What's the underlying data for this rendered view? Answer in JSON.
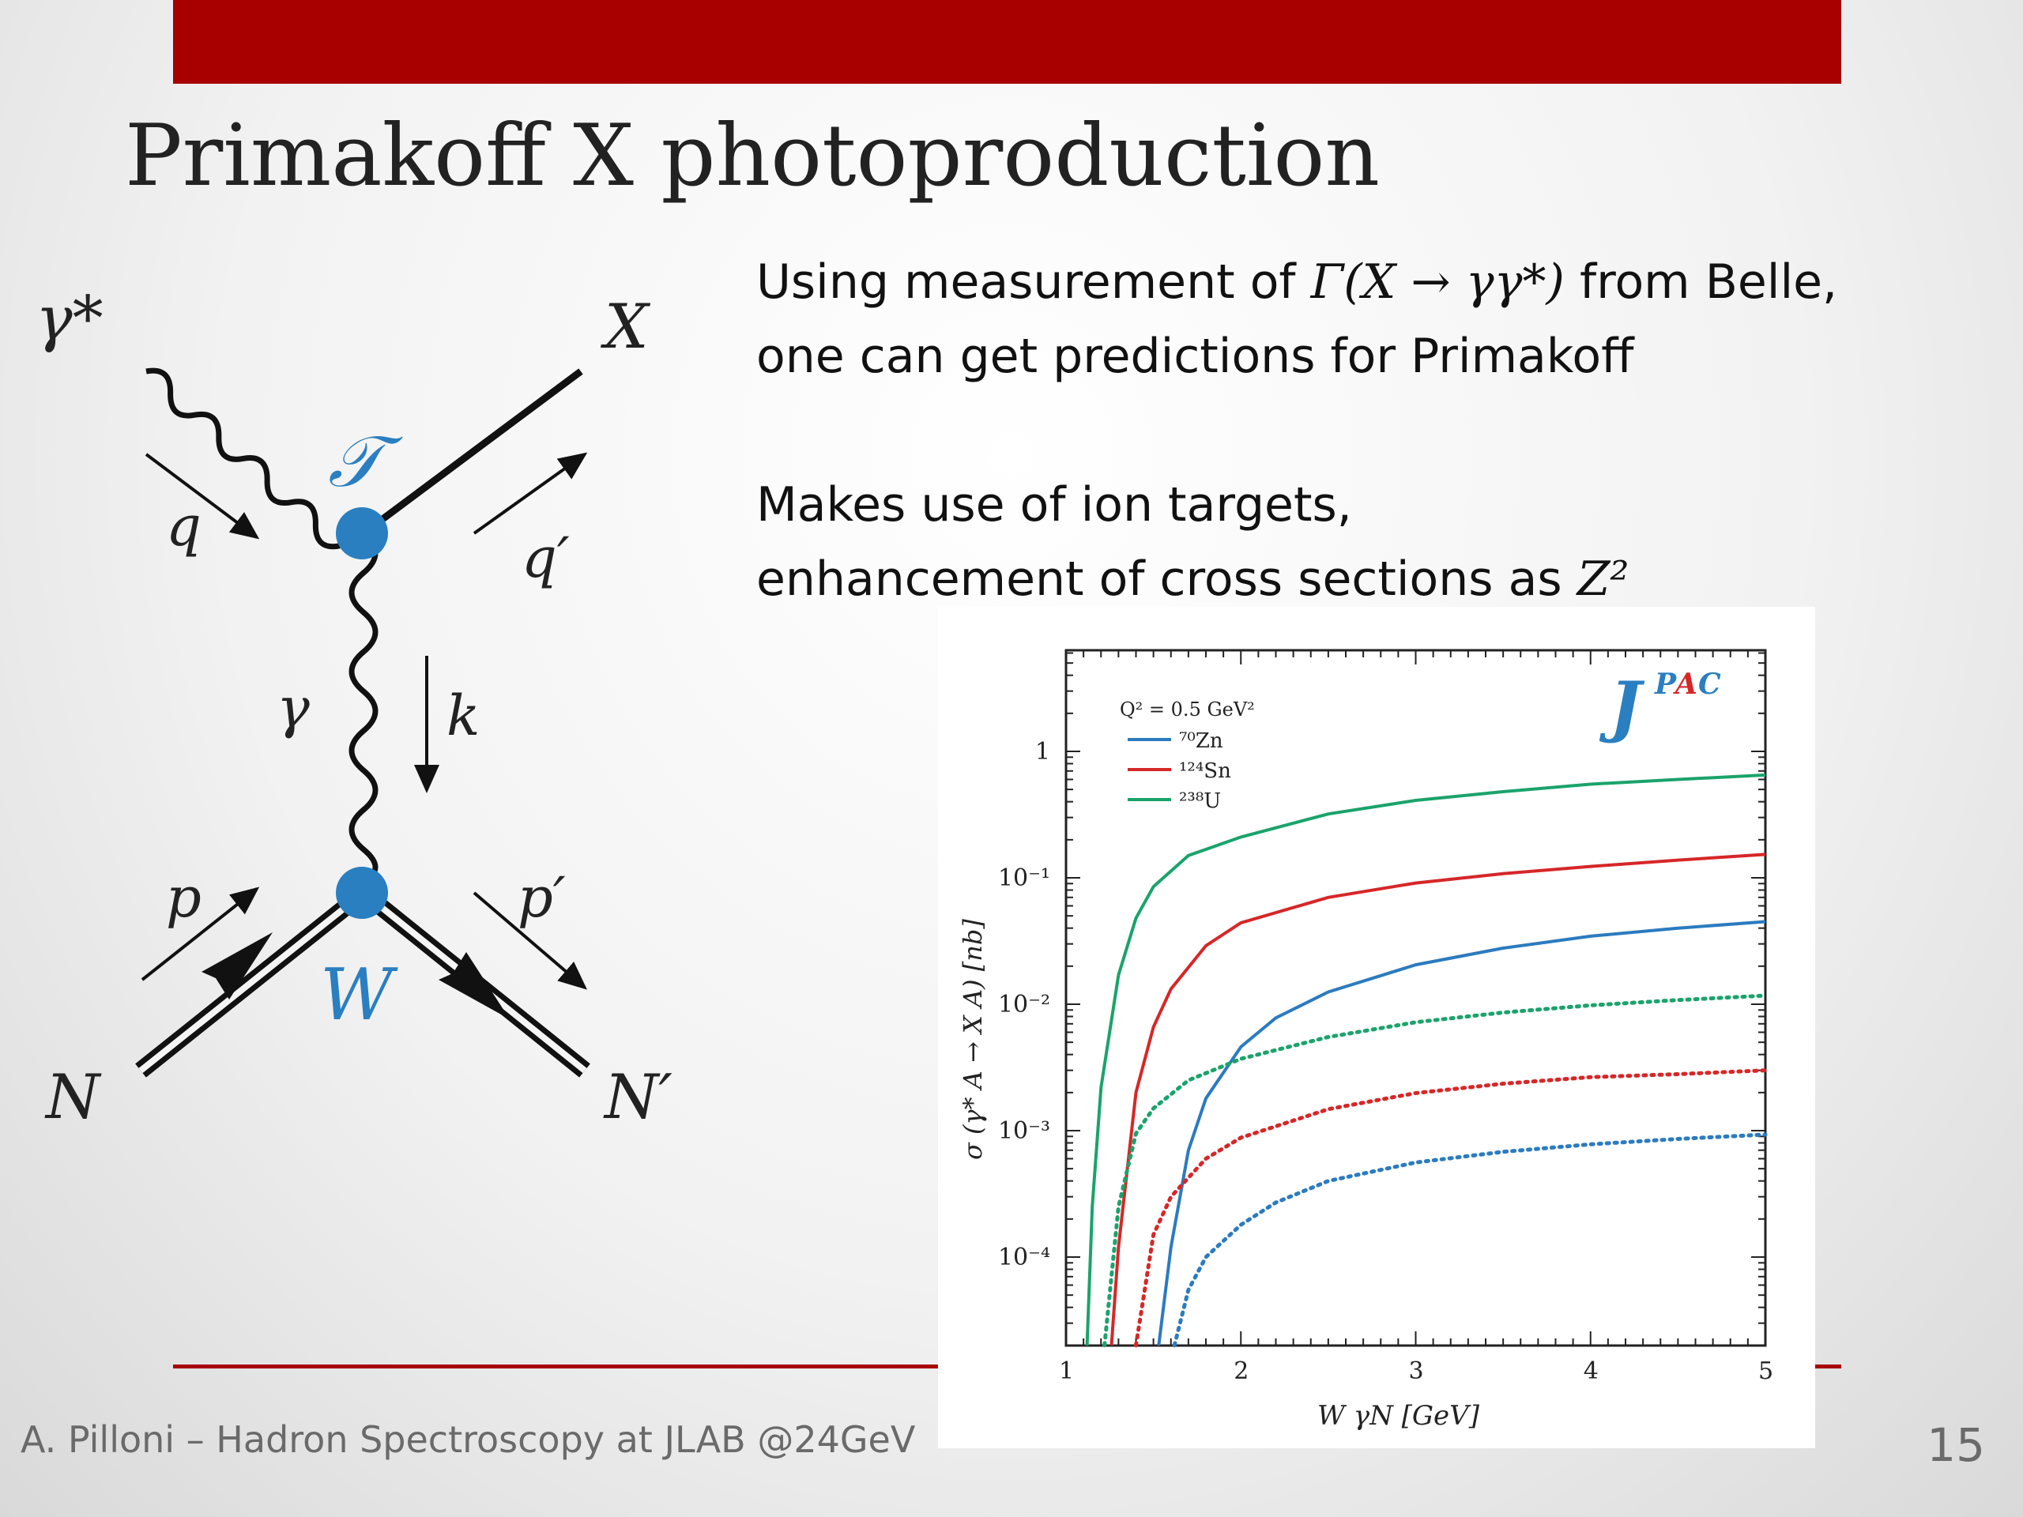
{
  "slide": {
    "title": "Primakoff X photoproduction",
    "paragraph1": [
      {
        "pre": "Using measurement of ",
        "math": "Γ(X → γγ*)",
        "post": " from Belle,"
      },
      {
        "pre": "one can get predictions for Primakoff",
        "math": "",
        "post": ""
      }
    ],
    "paragraph2": [
      {
        "pre": "Makes use of ion targets,",
        "math": "",
        "post": ""
      },
      {
        "pre": "enhancement of cross sections as ",
        "math": "Z²",
        "post": ""
      }
    ],
    "footer": "A. Pilloni – Hadron Spectroscopy at JLAB @24GeV",
    "page_number": "15",
    "colors": {
      "accent": "#a80000",
      "vertex": "#2a7fc1"
    }
  },
  "diagram": {
    "labels": {
      "gamma_star": "γ*",
      "X": "X",
      "q": "q",
      "q_prime": "q′",
      "T": "𝒯",
      "gamma": "γ",
      "k": "k",
      "p": "p",
      "p_prime": "p′",
      "W": "W",
      "N": "N",
      "N_prime": "N′"
    }
  },
  "chart_data": {
    "type": "line",
    "logo": {
      "J": "J",
      "P": "P",
      "A": "A",
      "C": "C"
    },
    "xlabel": "W γN   [GeV]",
    "ylabel": "σ (γ* A → X A)   [nb]",
    "x_ticks": [
      "1",
      "2",
      "3",
      "4",
      "5"
    ],
    "y_ticks": [
      "1",
      "10⁻¹",
      "10⁻²",
      "10⁻³",
      "10⁻⁴"
    ],
    "xlim": [
      1,
      5
    ],
    "ylim_log10": [
      -4.7,
      0.8
    ],
    "yscale": "log",
    "legend_title": "Q² = 0.5 GeV²",
    "legend_position": "top-left",
    "series": [
      {
        "name": "⁷⁰Zn",
        "color": "#2b7bbf",
        "style": "solid",
        "x": [
          1.53,
          1.6,
          1.7,
          1.8,
          2.0,
          2.2,
          2.5,
          3.0,
          3.5,
          4.0,
          4.5,
          5.0
        ],
        "y": [
          2e-05,
          0.00012,
          0.0007,
          0.0018,
          0.0046,
          0.0078,
          0.0125,
          0.0205,
          0.0278,
          0.0345,
          0.04,
          0.045
        ]
      },
      {
        "name": "¹²⁴Sn",
        "color": "#d62728",
        "style": "solid",
        "x": [
          1.26,
          1.3,
          1.4,
          1.5,
          1.6,
          1.8,
          2.0,
          2.5,
          3.0,
          3.5,
          4.0,
          4.5,
          5.0
        ],
        "y": [
          2e-05,
          0.00012,
          0.002,
          0.0066,
          0.0132,
          0.029,
          0.044,
          0.07,
          0.091,
          0.108,
          0.123,
          0.138,
          0.153
        ]
      },
      {
        "name": "²³⁸U",
        "color": "#1aa36b",
        "style": "solid",
        "x": [
          1.12,
          1.15,
          1.2,
          1.3,
          1.4,
          1.5,
          1.7,
          2.0,
          2.5,
          3.0,
          3.5,
          4.0,
          4.5,
          5.0
        ],
        "y": [
          2e-05,
          0.00025,
          0.0022,
          0.017,
          0.048,
          0.085,
          0.15,
          0.21,
          0.32,
          0.41,
          0.48,
          0.55,
          0.6,
          0.65
        ]
      },
      {
        "color": "#2b7bbf",
        "style": "dotted",
        "x": [
          1.62,
          1.7,
          1.8,
          2.0,
          2.2,
          2.5,
          3.0,
          3.5,
          4.0,
          4.5,
          5.0
        ],
        "y": [
          2e-05,
          5.5e-05,
          0.0001,
          0.00018,
          0.00027,
          0.0004,
          0.00056,
          0.00068,
          0.00078,
          0.00086,
          0.00093
        ]
      },
      {
        "color": "#d62728",
        "style": "dotted",
        "x": [
          1.4,
          1.5,
          1.6,
          1.8,
          2.0,
          2.5,
          3.0,
          3.5,
          4.0,
          4.5,
          5.0
        ],
        "y": [
          2e-05,
          0.00015,
          0.0003,
          0.0006,
          0.00088,
          0.00148,
          0.00198,
          0.00235,
          0.00265,
          0.0028,
          0.003
        ]
      },
      {
        "color": "#1aa36b",
        "style": "dotted",
        "x": [
          1.22,
          1.3,
          1.4,
          1.5,
          1.7,
          2.0,
          2.5,
          3.0,
          3.5,
          4.0,
          4.5,
          5.0
        ],
        "y": [
          2e-05,
          0.00025,
          0.00095,
          0.0015,
          0.0025,
          0.0037,
          0.0055,
          0.0072,
          0.0086,
          0.0098,
          0.0108,
          0.0117
        ]
      }
    ]
  }
}
